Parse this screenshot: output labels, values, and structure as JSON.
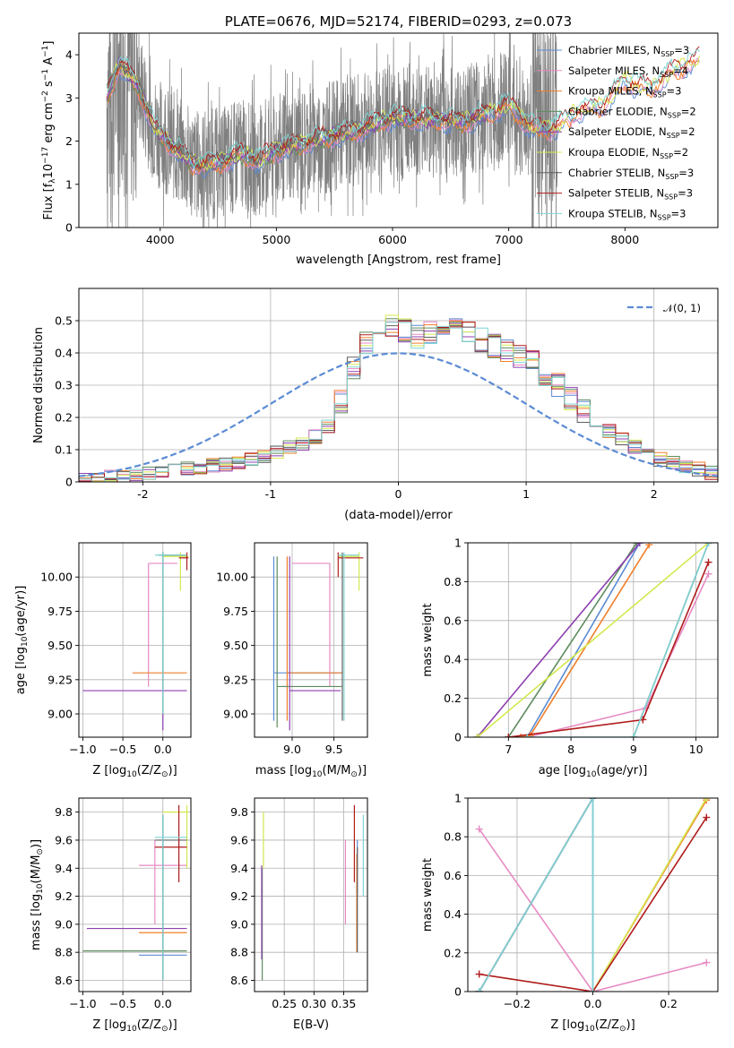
{
  "series_meta": [
    {
      "name": "Chabrier MILES, N$_{SSP}$=3",
      "n": "Chabrier MILES, N",
      "sub": "SSP",
      "eq": "=3",
      "color": "#5b8bd4"
    },
    {
      "name": "Salpeter MILES, N$_{SSP}$=4",
      "n": "Salpeter MILES, N",
      "sub": "SSP",
      "eq": "=4",
      "color": "#e78ac3"
    },
    {
      "name": "Kroupa MILES, N$_{SSP}$=3",
      "n": "Kroupa MILES, N",
      "sub": "SSP",
      "eq": "=3",
      "color": "#f07f2a"
    },
    {
      "name": "Chabrier ELODIE, N$_{SSP}$=2",
      "n": "Chabrier ELODIE, N",
      "sub": "SSP",
      "eq": "=2",
      "color": "#5e8c5e"
    },
    {
      "name": "Salpeter ELODIE, N$_{SSP}$=2",
      "n": "Salpeter ELODIE, N",
      "sub": "SSP",
      "eq": "=2",
      "color": "#8e3fb0"
    },
    {
      "name": "Kroupa ELODIE, N$_{SSP}$=2",
      "n": "Kroupa ELODIE, N",
      "sub": "SSP",
      "eq": "=2",
      "color": "#d4e84f"
    },
    {
      "name": "Chabrier STELIB, N$_{SSP}$=3",
      "n": "Chabrier STELIB, N",
      "sub": "SSP",
      "eq": "=3",
      "color": "#606060"
    },
    {
      "name": "Salpeter STELIB, N$_{SSP}$=3",
      "n": "Salpeter STELIB, N",
      "sub": "SSP",
      "eq": "=3",
      "color": "#b01c1c"
    },
    {
      "name": "Kroupa STELIB, N$_{SSP}$=3",
      "n": "Kroupa STELIB, N",
      "sub": "SSP",
      "eq": "=3",
      "color": "#7fd4d4"
    }
  ],
  "chart_data": [
    {
      "id": "spectrum",
      "type": "line",
      "title": "PLATE=0676, MJD=52174, FIBERID=0293, z=0.073",
      "xlabel": "wavelength [Angstrom, rest frame]",
      "ylabel_main": "Flux [f",
      "ylabel_sub": "λ",
      "ylabel_rest": "10",
      "ylabel_exp": "−17",
      "ylabel_unit": " erg cm",
      "xlim": [
        3300,
        8800
      ],
      "ylim": [
        0,
        4.5
      ],
      "xticks": [
        4000,
        5000,
        6000,
        7000,
        8000
      ],
      "yticks": [
        0,
        1,
        2,
        3,
        4
      ],
      "grid": false,
      "legend": "upper right",
      "data_color": "#808080",
      "data_x_range": [
        3540,
        7420
      ],
      "model_x_range": [
        3540,
        8640
      ],
      "continuum": {
        "x": [
          3550,
          3650,
          3800,
          3950,
          4100,
          4300,
          4500,
          4700,
          4850,
          5000,
          5300,
          5700,
          6000,
          6300,
          6600,
          6800,
          7000,
          7200,
          7400,
          7600,
          7800,
          8000,
          8200,
          8400,
          8640
        ],
        "y": [
          3.1,
          3.8,
          3.3,
          2.3,
          1.9,
          1.45,
          1.5,
          1.7,
          1.55,
          1.8,
          2.0,
          2.25,
          2.55,
          2.5,
          2.45,
          2.6,
          2.85,
          2.3,
          2.3,
          2.7,
          2.8,
          3.4,
          3.2,
          3.6,
          3.9
        ]
      }
    },
    {
      "id": "residuals",
      "type": "step",
      "xlabel": "(data-model)/error",
      "ylabel": "Normed distribution",
      "xlim": [
        -2.5,
        2.5
      ],
      "ylim": [
        0,
        0.6
      ],
      "xticks": [
        -2,
        -1,
        0,
        1,
        2
      ],
      "yticks": [
        0.0,
        0.1,
        0.2,
        0.3,
        0.4,
        0.5
      ],
      "grid": true,
      "legend": "upper right",
      "normal_label": "𝒩(0, 1)",
      "normal_color": "#5b8bd4",
      "bin_width": 0.1,
      "bin_start": -2.5,
      "base_hist": [
        0.01,
        0.01,
        0.015,
        0.015,
        0.02,
        0.025,
        0.03,
        0.035,
        0.04,
        0.045,
        0.05,
        0.055,
        0.06,
        0.07,
        0.08,
        0.095,
        0.11,
        0.12,
        0.14,
        0.17,
        0.25,
        0.35,
        0.43,
        0.49,
        0.48,
        0.47,
        0.45,
        0.46,
        0.47,
        0.48,
        0.46,
        0.44,
        0.42,
        0.41,
        0.39,
        0.37,
        0.33,
        0.3,
        0.26,
        0.22,
        0.19,
        0.16,
        0.13,
        0.11,
        0.09,
        0.07,
        0.06,
        0.05,
        0.04,
        0.03
      ]
    },
    {
      "id": "age_vs_Z",
      "type": "errorbar",
      "xlabel_main": "Z [log",
      "xlabel_sub": "10",
      "xlabel_rest": "(Z/Z",
      "ylabel_main": "age  [log",
      "ylabel_sub": "10",
      "ylabel_rest": "(age/yr)]",
      "xlim": [
        -1.05,
        0.35
      ],
      "ylim": [
        8.83,
        10.25
      ],
      "xticks": [
        -1.0,
        -0.5,
        0.0
      ],
      "xtick_labels": [
        "−1.0",
        "−0.5",
        "0.0"
      ],
      "yticks": [
        9.0,
        9.25,
        9.5,
        9.75,
        10.0
      ],
      "ytick_labels": [
        "9.00",
        "9.25",
        "9.50",
        "9.75",
        "10.00"
      ],
      "grid": true,
      "points": [
        {
          "s": 0,
          "x": 0.0,
          "y": 10.16,
          "ex": [
            -0.05,
            0.3
          ],
          "ey": [
            9.0,
            10.18
          ]
        },
        {
          "s": 1,
          "x": -0.18,
          "y": 10.1,
          "ex": [
            -0.18,
            0.18
          ],
          "ey": [
            9.2,
            10.1
          ]
        },
        {
          "s": 2,
          "x": 0.0,
          "y": 9.3,
          "ex": [
            -0.38,
            0.3
          ],
          "ey": [
            9.15,
            10.15
          ]
        },
        {
          "s": 3,
          "x": 0.0,
          "y": 10.16,
          "ex": [
            -0.05,
            0.3
          ],
          "ey": [
            9.0,
            10.18
          ]
        },
        {
          "s": 4,
          "x": 0.0,
          "y": 9.17,
          "ex": [
            -1.0,
            0.3
          ],
          "ey": [
            8.88,
            10.15
          ]
        },
        {
          "s": 5,
          "x": 0.22,
          "y": 10.15,
          "ex": [
            0.0,
            0.32
          ],
          "ey": [
            9.9,
            10.18
          ]
        },
        {
          "s": 6,
          "x": 0.0,
          "y": 10.16,
          "ex": [
            -0.05,
            0.3
          ],
          "ey": [
            9.0,
            10.18
          ]
        },
        {
          "s": 7,
          "x": 0.3,
          "y": 10.14,
          "ex": [
            0.2,
            0.32
          ],
          "ey": [
            10.05,
            10.18
          ]
        },
        {
          "s": 8,
          "x": 0.0,
          "y": 10.16,
          "ex": [
            -0.1,
            0.3
          ],
          "ey": [
            9.0,
            10.18
          ]
        }
      ]
    },
    {
      "id": "age_vs_mass",
      "type": "errorbar",
      "xlabel_main": "mass [log",
      "xlabel_sub": "10",
      "xlabel_rest": "(M/M",
      "xlim": [
        8.55,
        9.9
      ],
      "ylim": [
        8.83,
        10.25
      ],
      "xticks": [
        9.0,
        9.5
      ],
      "xtick_labels": [
        "9.0",
        "9.5"
      ],
      "yticks": [
        9.0,
        9.25,
        9.5,
        9.75,
        10.0
      ],
      "ytick_labels": [
        "9.00",
        "9.25",
        "9.50",
        "9.75",
        "10.00"
      ],
      "grid": true,
      "points": [
        {
          "s": 0,
          "x": 8.78,
          "y": 9.3,
          "ex": [
            8.78,
            9.6
          ],
          "ey": [
            8.95,
            10.15
          ]
        },
        {
          "s": 1,
          "x": 9.45,
          "y": 10.1,
          "ex": [
            9.0,
            9.45
          ],
          "ey": [
            9.2,
            10.1
          ]
        },
        {
          "s": 2,
          "x": 8.94,
          "y": 9.3,
          "ex": [
            8.94,
            9.6
          ],
          "ey": [
            8.95,
            10.15
          ]
        },
        {
          "s": 3,
          "x": 8.82,
          "y": 9.2,
          "ex": [
            8.82,
            9.6
          ],
          "ey": [
            8.9,
            10.15
          ]
        },
        {
          "s": 4,
          "x": 8.97,
          "y": 9.17,
          "ex": [
            8.97,
            9.58
          ],
          "ey": [
            8.88,
            10.15
          ]
        },
        {
          "s": 5,
          "x": 9.8,
          "y": 10.15,
          "ex": [
            9.55,
            9.8
          ],
          "ey": [
            9.9,
            10.18
          ]
        },
        {
          "s": 6,
          "x": 9.6,
          "y": 10.16,
          "ex": [
            9.58,
            9.62
          ],
          "ey": [
            8.95,
            10.18
          ]
        },
        {
          "s": 7,
          "x": 9.55,
          "y": 10.14,
          "ex": [
            9.55,
            9.85
          ],
          "ey": [
            10.0,
            10.18
          ]
        },
        {
          "s": 8,
          "x": 9.62,
          "y": 10.16,
          "ex": [
            9.55,
            9.8
          ],
          "ey": [
            8.95,
            10.18
          ]
        }
      ]
    },
    {
      "id": "weight_vs_age",
      "type": "line",
      "xlabel_main": "age  [log",
      "xlabel_sub": "10",
      "xlabel_rest": "(age/yr)]",
      "ylabel": "mass weight",
      "xlim": [
        6.35,
        10.35
      ],
      "ylim": [
        0,
        1.0
      ],
      "xticks": [
        7,
        8,
        9,
        10
      ],
      "yticks": [
        0.0,
        0.2,
        0.4,
        0.6,
        0.8,
        1.0
      ],
      "grid": true,
      "lines": [
        {
          "s": 0,
          "x": [
            7.0,
            7.3,
            9.1
          ],
          "y": [
            0.0,
            0.0,
            1.0
          ]
        },
        {
          "s": 1,
          "x": [
            7.3,
            9.2,
            10.2
          ],
          "y": [
            0.0,
            0.15,
            0.84
          ]
        },
        {
          "s": 2,
          "x": [
            7.2,
            7.35,
            9.25
          ],
          "y": [
            0.0,
            0.01,
            0.99
          ]
        },
        {
          "s": 3,
          "x": [
            7.0,
            9.05
          ],
          "y": [
            0.0,
            1.0
          ]
        },
        {
          "s": 4,
          "x": [
            6.5,
            9.1
          ],
          "y": [
            0.0,
            1.0
          ]
        },
        {
          "s": 5,
          "x": [
            6.5,
            10.2
          ],
          "y": [
            0.0,
            1.0
          ]
        },
        {
          "s": 6,
          "x": [
            9.0,
            10.2
          ],
          "y": [
            0.0,
            1.0
          ]
        },
        {
          "s": 7,
          "x": [
            7.0,
            9.15,
            10.2
          ],
          "y": [
            0.0,
            0.09,
            0.9
          ]
        },
        {
          "s": 8,
          "x": [
            7.3,
            9.0,
            10.2
          ],
          "y": [
            0.0,
            0.0,
            1.0
          ]
        }
      ]
    },
    {
      "id": "mass_vs_Z",
      "type": "errorbar",
      "xlabel_main": "Z [log",
      "xlabel_sub": "10",
      "xlabel_rest": "(Z/Z",
      "ylabel_main": "mass [log",
      "ylabel_sub": "10",
      "ylabel_rest": "(M/M",
      "xlim": [
        -1.05,
        0.35
      ],
      "ylim": [
        8.52,
        9.9
      ],
      "xticks": [
        -1.0,
        -0.5,
        0.0
      ],
      "xtick_labels": [
        "−1.0",
        "−0.5",
        "0.0"
      ],
      "yticks": [
        8.6,
        8.8,
        9.0,
        9.2,
        9.4,
        9.6,
        9.8
      ],
      "ytick_labels": [
        "8.6",
        "8.8",
        "9.0",
        "9.2",
        "9.4",
        "9.6",
        "9.8"
      ],
      "grid": true,
      "points": [
        {
          "s": 0,
          "x": 0.0,
          "y": 8.78,
          "ex": [
            -0.3,
            0.3
          ],
          "ey": [
            8.6,
            9.6
          ]
        },
        {
          "s": 1,
          "x": -0.1,
          "y": 9.42,
          "ex": [
            -0.3,
            0.3
          ],
          "ey": [
            9.0,
            9.6
          ]
        },
        {
          "s": 2,
          "x": 0.0,
          "y": 8.94,
          "ex": [
            -0.3,
            0.3
          ],
          "ey": [
            8.9,
            9.6
          ]
        },
        {
          "s": 3,
          "x": 0.0,
          "y": 8.81,
          "ex": [
            -1.0,
            0.3
          ],
          "ey": [
            8.6,
            9.78
          ]
        },
        {
          "s": 4,
          "x": 0.0,
          "y": 8.97,
          "ex": [
            -0.95,
            0.3
          ],
          "ey": [
            8.9,
            9.6
          ]
        },
        {
          "s": 5,
          "x": 0.3,
          "y": 9.8,
          "ex": [
            0.0,
            0.32
          ],
          "ey": [
            9.4,
            9.85
          ]
        },
        {
          "s": 6,
          "x": 0.0,
          "y": 9.6,
          "ex": [
            -0.1,
            0.3
          ],
          "ey": [
            8.6,
            9.78
          ]
        },
        {
          "s": 7,
          "x": 0.2,
          "y": 9.55,
          "ex": [
            -0.1,
            0.3
          ],
          "ey": [
            9.3,
            9.85
          ]
        },
        {
          "s": 8,
          "x": 0.0,
          "y": 9.62,
          "ex": [
            -0.1,
            0.3
          ],
          "ey": [
            8.6,
            9.78
          ]
        }
      ]
    },
    {
      "id": "mass_vs_EBV",
      "type": "errorbar",
      "xlabel": "E(B-V)",
      "xlim": [
        0.2,
        0.39
      ],
      "ylim": [
        8.52,
        9.9
      ],
      "xticks": [
        0.25,
        0.3,
        0.35
      ],
      "xtick_labels": [
        "0.25",
        "0.30",
        "0.35"
      ],
      "yticks": [
        8.6,
        8.8,
        9.0,
        9.2,
        9.4,
        9.6,
        9.8
      ],
      "ytick_labels": [
        "8.6",
        "8.8",
        "9.0",
        "9.2",
        "9.4",
        "9.6",
        "9.8"
      ],
      "grid": true,
      "points": [
        {
          "s": 0,
          "x": 0.373,
          "y": 9.4,
          "ex": [
            0.373,
            0.373
          ],
          "ey": [
            9.2,
            9.6
          ]
        },
        {
          "s": 1,
          "x": 0.353,
          "y": 9.4,
          "ex": [
            0.353,
            0.353
          ],
          "ey": [
            9.0,
            9.6
          ]
        },
        {
          "s": 2,
          "x": 0.372,
          "y": 9.2,
          "ex": [
            0.372,
            0.372
          ],
          "ey": [
            8.8,
            9.5
          ]
        },
        {
          "s": 3,
          "x": 0.213,
          "y": 9.0,
          "ex": [
            0.213,
            0.213
          ],
          "ey": [
            8.6,
            9.4
          ]
        },
        {
          "s": 4,
          "x": 0.212,
          "y": 9.0,
          "ex": [
            0.212,
            0.212
          ],
          "ey": [
            8.75,
            9.42
          ]
        },
        {
          "s": 5,
          "x": 0.215,
          "y": 9.6,
          "ex": [
            0.215,
            0.215
          ],
          "ey": [
            9.4,
            9.8
          ]
        },
        {
          "s": 6,
          "x": 0.373,
          "y": 9.4,
          "ex": [
            0.373,
            0.373
          ],
          "ey": [
            8.8,
            9.55
          ]
        },
        {
          "s": 7,
          "x": 0.368,
          "y": 9.6,
          "ex": [
            0.368,
            0.368
          ],
          "ey": [
            9.3,
            9.85
          ]
        },
        {
          "s": 8,
          "x": 0.383,
          "y": 9.5,
          "ex": [
            0.383,
            0.383
          ],
          "ey": [
            9.2,
            9.78
          ]
        }
      ]
    },
    {
      "id": "weight_vs_Z",
      "type": "line",
      "xlabel_main": "Z [log",
      "xlabel_sub": "10",
      "xlabel_rest": "(Z/Z",
      "ylabel": "mass weight",
      "xlim": [
        -0.33,
        0.33
      ],
      "ylim": [
        0,
        1.0
      ],
      "xticks": [
        -0.2,
        0.0,
        0.2
      ],
      "xtick_labels": [
        "−0.2",
        "0.0",
        "0.2"
      ],
      "yticks": [
        0.0,
        0.2,
        0.4,
        0.6,
        0.8,
        1.0
      ],
      "grid": true,
      "lines": [
        {
          "s": 0,
          "x": [
            -0.3,
            0.0,
            0.0
          ],
          "y": [
            0.0,
            1.0,
            0.0
          ]
        },
        {
          "s": 1,
          "x": [
            -0.3,
            0.0,
            0.3
          ],
          "y": [
            0.84,
            0.0,
            0.15
          ]
        },
        {
          "s": 2,
          "x": [
            0.0,
            0.3
          ],
          "y": [
            0.0,
            0.99
          ]
        },
        {
          "s": 3,
          "x": [
            -0.3,
            0.0
          ],
          "y": [
            0.0,
            1.0
          ]
        },
        {
          "s": 4,
          "x": [
            -0.3,
            0.0
          ],
          "y": [
            0.0,
            1.0
          ]
        },
        {
          "s": 5,
          "x": [
            0.0,
            0.3
          ],
          "y": [
            0.0,
            1.0
          ]
        },
        {
          "s": 6,
          "x": [
            -0.3,
            0.0
          ],
          "y": [
            0.0,
            1.0
          ]
        },
        {
          "s": 7,
          "x": [
            -0.3,
            0.0,
            0.3
          ],
          "y": [
            0.09,
            0.0,
            0.9
          ]
        },
        {
          "s": 8,
          "x": [
            -0.3,
            0.0,
            0.0
          ],
          "y": [
            0.0,
            1.0,
            0.0
          ]
        }
      ]
    }
  ]
}
